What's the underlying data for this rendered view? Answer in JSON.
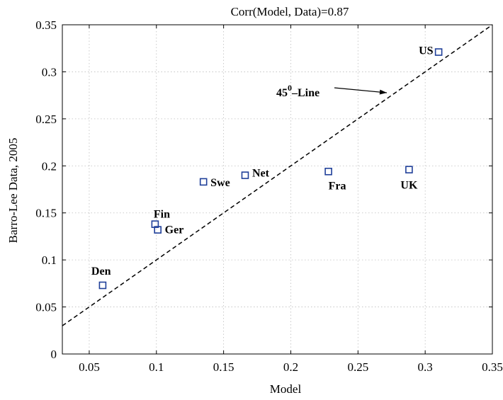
{
  "chart_data": {
    "type": "scatter",
    "title": "Corr(Model, Data)=0.87",
    "xlabel": "Model",
    "ylabel": "Barro-Lee Data, 2005",
    "xlim": [
      0.03,
      0.35
    ],
    "ylim": [
      0,
      0.35
    ],
    "xticks": [
      "0.05",
      "0.1",
      "0.15",
      "0.2",
      "0.25",
      "0.3",
      "0.35"
    ],
    "yticks": [
      "0",
      "0.05",
      "0.1",
      "0.15",
      "0.2",
      "0.25",
      "0.3",
      "0.35"
    ],
    "grid": true,
    "marker_color": "#1f3f99",
    "points": [
      {
        "label": "US",
        "x": 0.31,
        "y": 0.321
      },
      {
        "label": "UK",
        "x": 0.288,
        "y": 0.196
      },
      {
        "label": "Fra",
        "x": 0.228,
        "y": 0.194
      },
      {
        "label": "Net",
        "x": 0.166,
        "y": 0.19
      },
      {
        "label": "Swe",
        "x": 0.135,
        "y": 0.183
      },
      {
        "label": "Fin",
        "x": 0.099,
        "y": 0.138
      },
      {
        "label": "Ger",
        "x": 0.101,
        "y": 0.132
      },
      {
        "label": "Den",
        "x": 0.06,
        "y": 0.073
      }
    ],
    "reference_line": {
      "style": "dashed",
      "from": [
        0.03,
        0.03
      ],
      "to": [
        0.35,
        0.35
      ]
    },
    "annotation": {
      "base": "45",
      "superscript": "0",
      "suffix": "–Line"
    }
  }
}
